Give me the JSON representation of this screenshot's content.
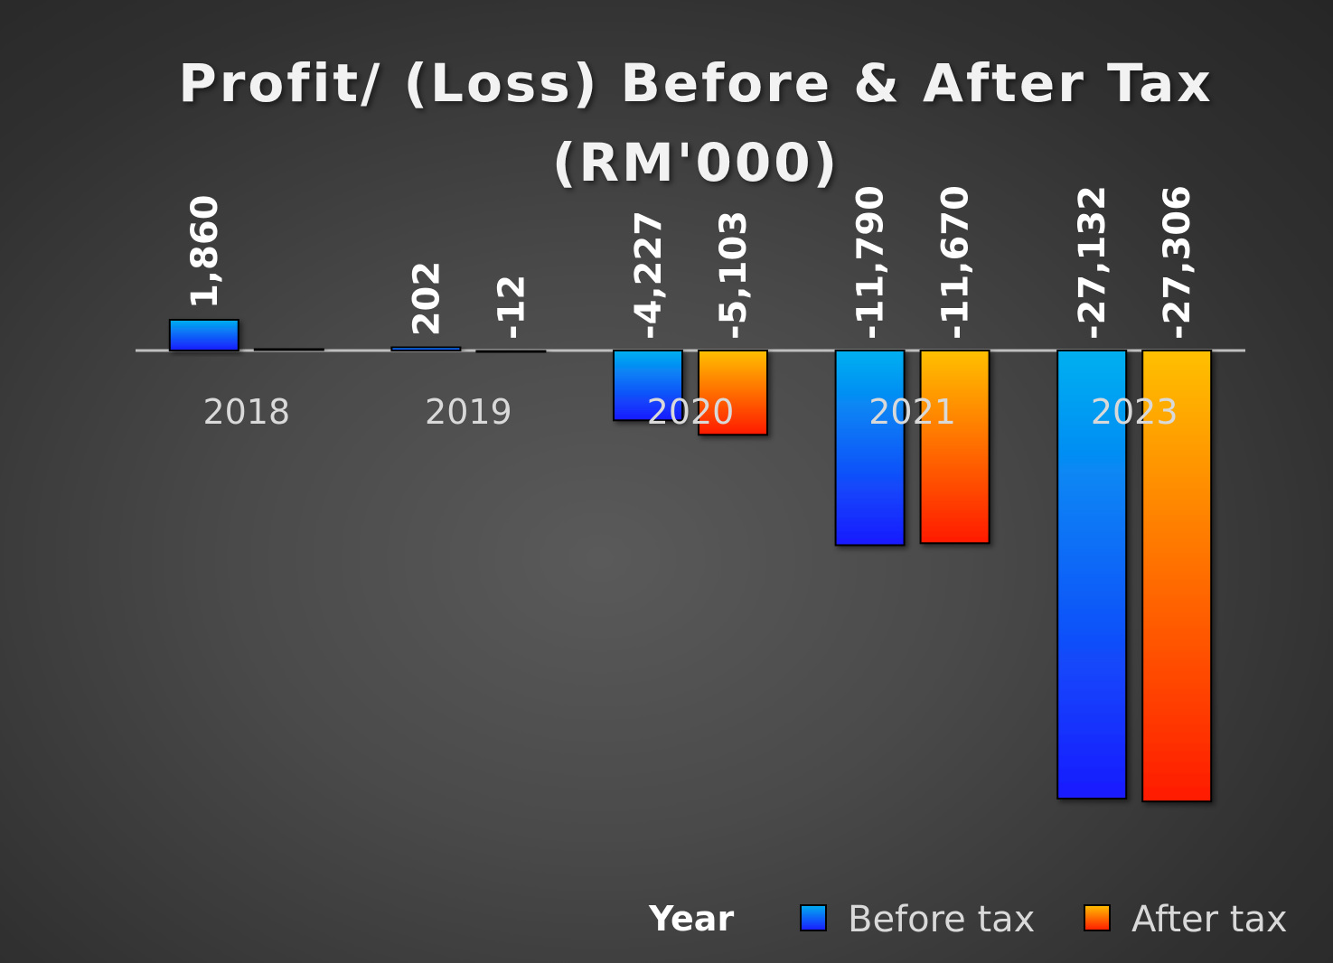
{
  "chart_data": {
    "type": "bar",
    "title": "Profit/ (Loss) Before & After Tax",
    "subtitle": "(RM'000)",
    "categories": [
      "2018",
      "2019",
      "2020",
      "2021",
      "2023"
    ],
    "series": [
      {
        "name": "Before tax",
        "values": [
          1860,
          202,
          -4227,
          -11790,
          -27132
        ],
        "labels": [
          "1,860",
          "202",
          "-4,227",
          "-11,790",
          "-27,132"
        ],
        "color_top": "#00b0f0",
        "color_bottom": "#1a1aff"
      },
      {
        "name": "After tax",
        "values": [
          5,
          -12,
          -5103,
          -11670,
          -27306
        ],
        "labels": [
          "",
          "-12",
          "-5,103",
          "-11,670",
          "-27,306"
        ],
        "color_top": "#ffc000",
        "color_bottom": "#ff1a00"
      }
    ],
    "legend_title": "Year",
    "legend_position": "bottom-right",
    "grid": false
  }
}
